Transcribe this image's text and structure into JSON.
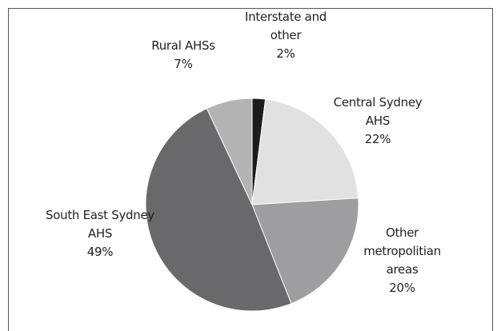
{
  "chart_data": {
    "type": "pie",
    "categories": [
      "Interstate and other",
      "Central Sydney AHS",
      "Other metropolitian areas",
      "South East Sydney AHS",
      "Rural AHSs"
    ],
    "values": [
      2,
      22,
      20,
      49,
      7
    ],
    "value_labels": [
      "2%",
      "22%",
      "20%",
      "49%",
      "7%"
    ],
    "colors": [
      "#1c1c1c",
      "#e1e1e1",
      "#9e9ea0",
      "#69696b",
      "#b3b3b3"
    ]
  }
}
